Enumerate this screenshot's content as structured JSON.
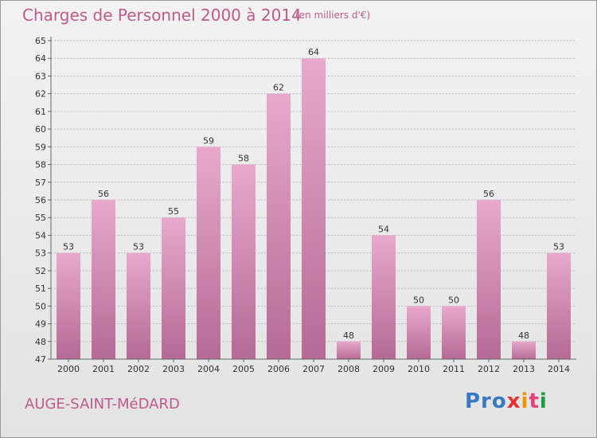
{
  "chart_data": {
    "type": "bar",
    "title": "Charges de Personnel 2000 à 2014",
    "subtitle": "(en milliers d'€)",
    "categories": [
      "2000",
      "2001",
      "2002",
      "2003",
      "2004",
      "2005",
      "2006",
      "2007",
      "2008",
      "2009",
      "2010",
      "2011",
      "2012",
      "2013",
      "2014"
    ],
    "values": [
      53,
      56,
      53,
      55,
      59,
      58,
      62,
      64,
      48,
      54,
      50,
      50,
      56,
      48,
      53
    ],
    "ylim": [
      47,
      65
    ],
    "yticks": [
      47,
      48,
      49,
      50,
      51,
      52,
      53,
      54,
      55,
      56,
      57,
      58,
      59,
      60,
      61,
      62,
      63,
      64,
      65
    ],
    "grid": true,
    "bar_color_top": "#e8a9cd",
    "bar_color_bottom": "#b56a95"
  },
  "footer": {
    "commune": "AUGE-SAINT-MéDARD",
    "logo": {
      "p1": "Pro",
      "p2": "x",
      "p3": "i",
      "p4": "t",
      "p5": "i"
    }
  }
}
